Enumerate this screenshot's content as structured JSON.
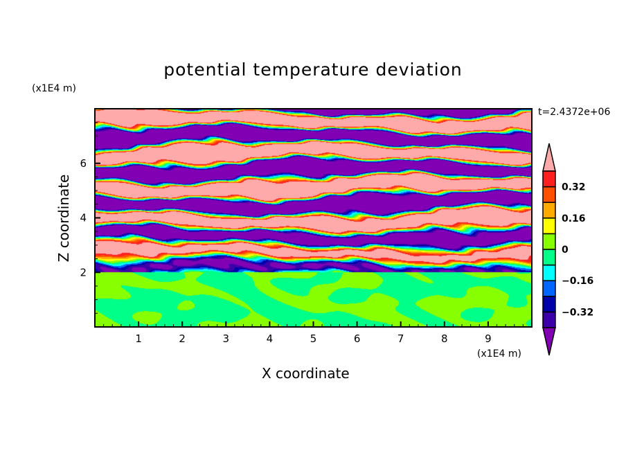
{
  "chart_data": {
    "type": "heatmap",
    "title": "potential temperature deviation",
    "xlabel": "X coordinate",
    "ylabel": "Z coordinate",
    "x_unit": "(x1E4 m)",
    "y_unit": "(x1E4 m)",
    "annotation": "t=2.4372e+06",
    "xlim": [
      0,
      10
    ],
    "ylim": [
      0,
      8
    ],
    "xticks": [
      "1",
      "2",
      "3",
      "4",
      "5",
      "6",
      "7",
      "8",
      "9"
    ],
    "yticks": [
      "2",
      "4",
      "6"
    ],
    "colorbar": {
      "levels": [
        -0.4,
        -0.32,
        -0.24,
        -0.16,
        -0.08,
        0,
        0.08,
        0.16,
        0.24,
        0.32,
        0.4
      ],
      "labels": [
        "0.32",
        "0.16",
        "0",
        "-0.16",
        "-0.32"
      ],
      "label_values": [
        0.32,
        0.16,
        0,
        -0.16,
        -0.32
      ],
      "colors": [
        "#8200b4",
        "#3c00a8",
        "#0000aa",
        "#0064ff",
        "#00ffff",
        "#00ff88",
        "#88ff00",
        "#ffff00",
        "#ffaa00",
        "#ff5000",
        "#ff2020",
        "#ffaaaa"
      ],
      "extend": "both"
    },
    "field_description_regions": [
      {
        "z_range": [
          0,
          2
        ],
        "values_range": [
          0,
          0.08
        ]
      },
      {
        "z_range": [
          2,
          8
        ],
        "values_range": [
          -0.5,
          0.5
        ]
      }
    ]
  }
}
